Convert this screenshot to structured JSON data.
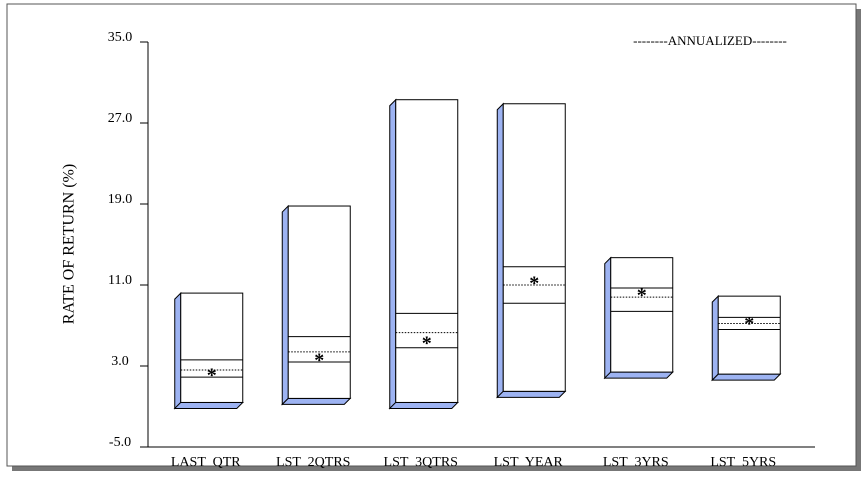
{
  "chart_data": {
    "type": "floating-box",
    "y_label": "RATE OF RETURN (%)",
    "annotation": "--------ANNUALIZED--------",
    "categories": [
      "LAST  QTR",
      "LST  2QTRS",
      "LST  3QTRS",
      "LST  YEAR",
      "LST  3YRS",
      "LST  5YRS"
    ],
    "max": [
      10.2,
      18.8,
      29.3,
      28.9,
      13.7,
      9.9
    ],
    "q3": [
      3.6,
      5.9,
      8.2,
      12.8,
      10.7,
      7.8
    ],
    "median": [
      2.6,
      4.4,
      6.3,
      11.0,
      9.8,
      7.2
    ],
    "q1": [
      1.9,
      3.4,
      4.8,
      9.2,
      8.4,
      6.6
    ],
    "min": [
      -0.6,
      -0.2,
      -0.6,
      0.5,
      2.4,
      2.2
    ],
    "marker": [
      2.4,
      3.9,
      5.6,
      11.5,
      10.3,
      7.5
    ],
    "side_color": "#9db3f2",
    "ylim": [
      -5,
      35
    ],
    "yticks": [
      {
        "value": -5,
        "label": "-5.0"
      },
      {
        "value": 3,
        "label": "3.0"
      },
      {
        "value": 11,
        "label": "11.0"
      },
      {
        "value": 19,
        "label": "19.0"
      },
      {
        "value": 27,
        "label": "27.0"
      },
      {
        "value": 35,
        "label": "35.0"
      }
    ]
  }
}
